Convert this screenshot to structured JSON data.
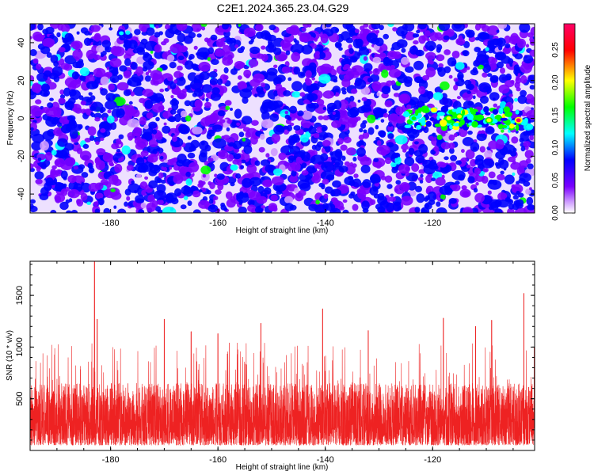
{
  "title": "C2E1.2024.365.23.04.G29",
  "chart_data": [
    {
      "type": "heatmap",
      "xlabel": "Height of straight line (km)",
      "ylabel": "Frequency (Hz)",
      "xlim": [
        -195,
        -101
      ],
      "ylim": [
        -50,
        50
      ],
      "x_ticks": [
        -180,
        -160,
        -140,
        -120
      ],
      "y_ticks": [
        -40,
        -20,
        0,
        20,
        40
      ],
      "x_tick_labels": [
        "-180",
        "-160",
        "-140",
        "-120"
      ],
      "y_tick_labels": [
        "-40",
        "-20",
        "0",
        "20",
        "40"
      ],
      "colorbar": {
        "label": "Normalized spectral amplitude",
        "range": [
          0,
          0.29
        ],
        "ticks": [
          0.0,
          0.05,
          0.1,
          0.15,
          0.2,
          0.25
        ],
        "tick_labels": [
          "0.00",
          "0.05",
          "0.10",
          "0.15",
          "0.20",
          "0.25"
        ],
        "colormap": [
          "#ffffff",
          "#cc99ff",
          "#7a00ff",
          "#0000ff",
          "#00ffff",
          "#00ff00",
          "#ffff00",
          "#ff0000",
          "#ff0066"
        ]
      },
      "background_level": 0.04,
      "notable_features": [
        {
          "x": -123.5,
          "y": 0,
          "value": 0.15
        },
        {
          "x": -117,
          "y": 0,
          "value": 0.18
        },
        {
          "x": -115,
          "y": 1,
          "value": 0.2
        },
        {
          "x": -109.5,
          "y": -1,
          "value": 0.17
        },
        {
          "x": -104,
          "y": -1,
          "value": 0.27
        },
        {
          "x": -157,
          "y": -26,
          "value": 0.12
        },
        {
          "x": -178,
          "y": 45,
          "value": 0.1
        }
      ]
    },
    {
      "type": "line",
      "xlabel": "Height of straight line (km)",
      "ylabel": "SNR (10 * v/v)",
      "xlim": [
        -195,
        -101
      ],
      "ylim": [
        0,
        1830
      ],
      "x_ticks": [
        -180,
        -160,
        -140,
        -120
      ],
      "y_ticks": [
        500,
        1000,
        1500
      ],
      "x_tick_labels": [
        "-180",
        "-160",
        "-140",
        "-120"
      ],
      "y_tick_labels": [
        "500",
        "1000",
        "1500"
      ],
      "series_color": "#ee2222",
      "typical_range": [
        50,
        650
      ],
      "peaks": [
        {
          "x": -183,
          "y": 1830
        },
        {
          "x": -182.5,
          "y": 1270
        },
        {
          "x": -170,
          "y": 1270
        },
        {
          "x": -165,
          "y": 1150
        },
        {
          "x": -160,
          "y": 1130
        },
        {
          "x": -152,
          "y": 1230
        },
        {
          "x": -140.5,
          "y": 1370
        },
        {
          "x": -132,
          "y": 1160
        },
        {
          "x": -118,
          "y": 1280
        },
        {
          "x": -112,
          "y": 1200
        },
        {
          "x": -109,
          "y": 1260
        },
        {
          "x": -103,
          "y": 1520
        }
      ]
    }
  ]
}
